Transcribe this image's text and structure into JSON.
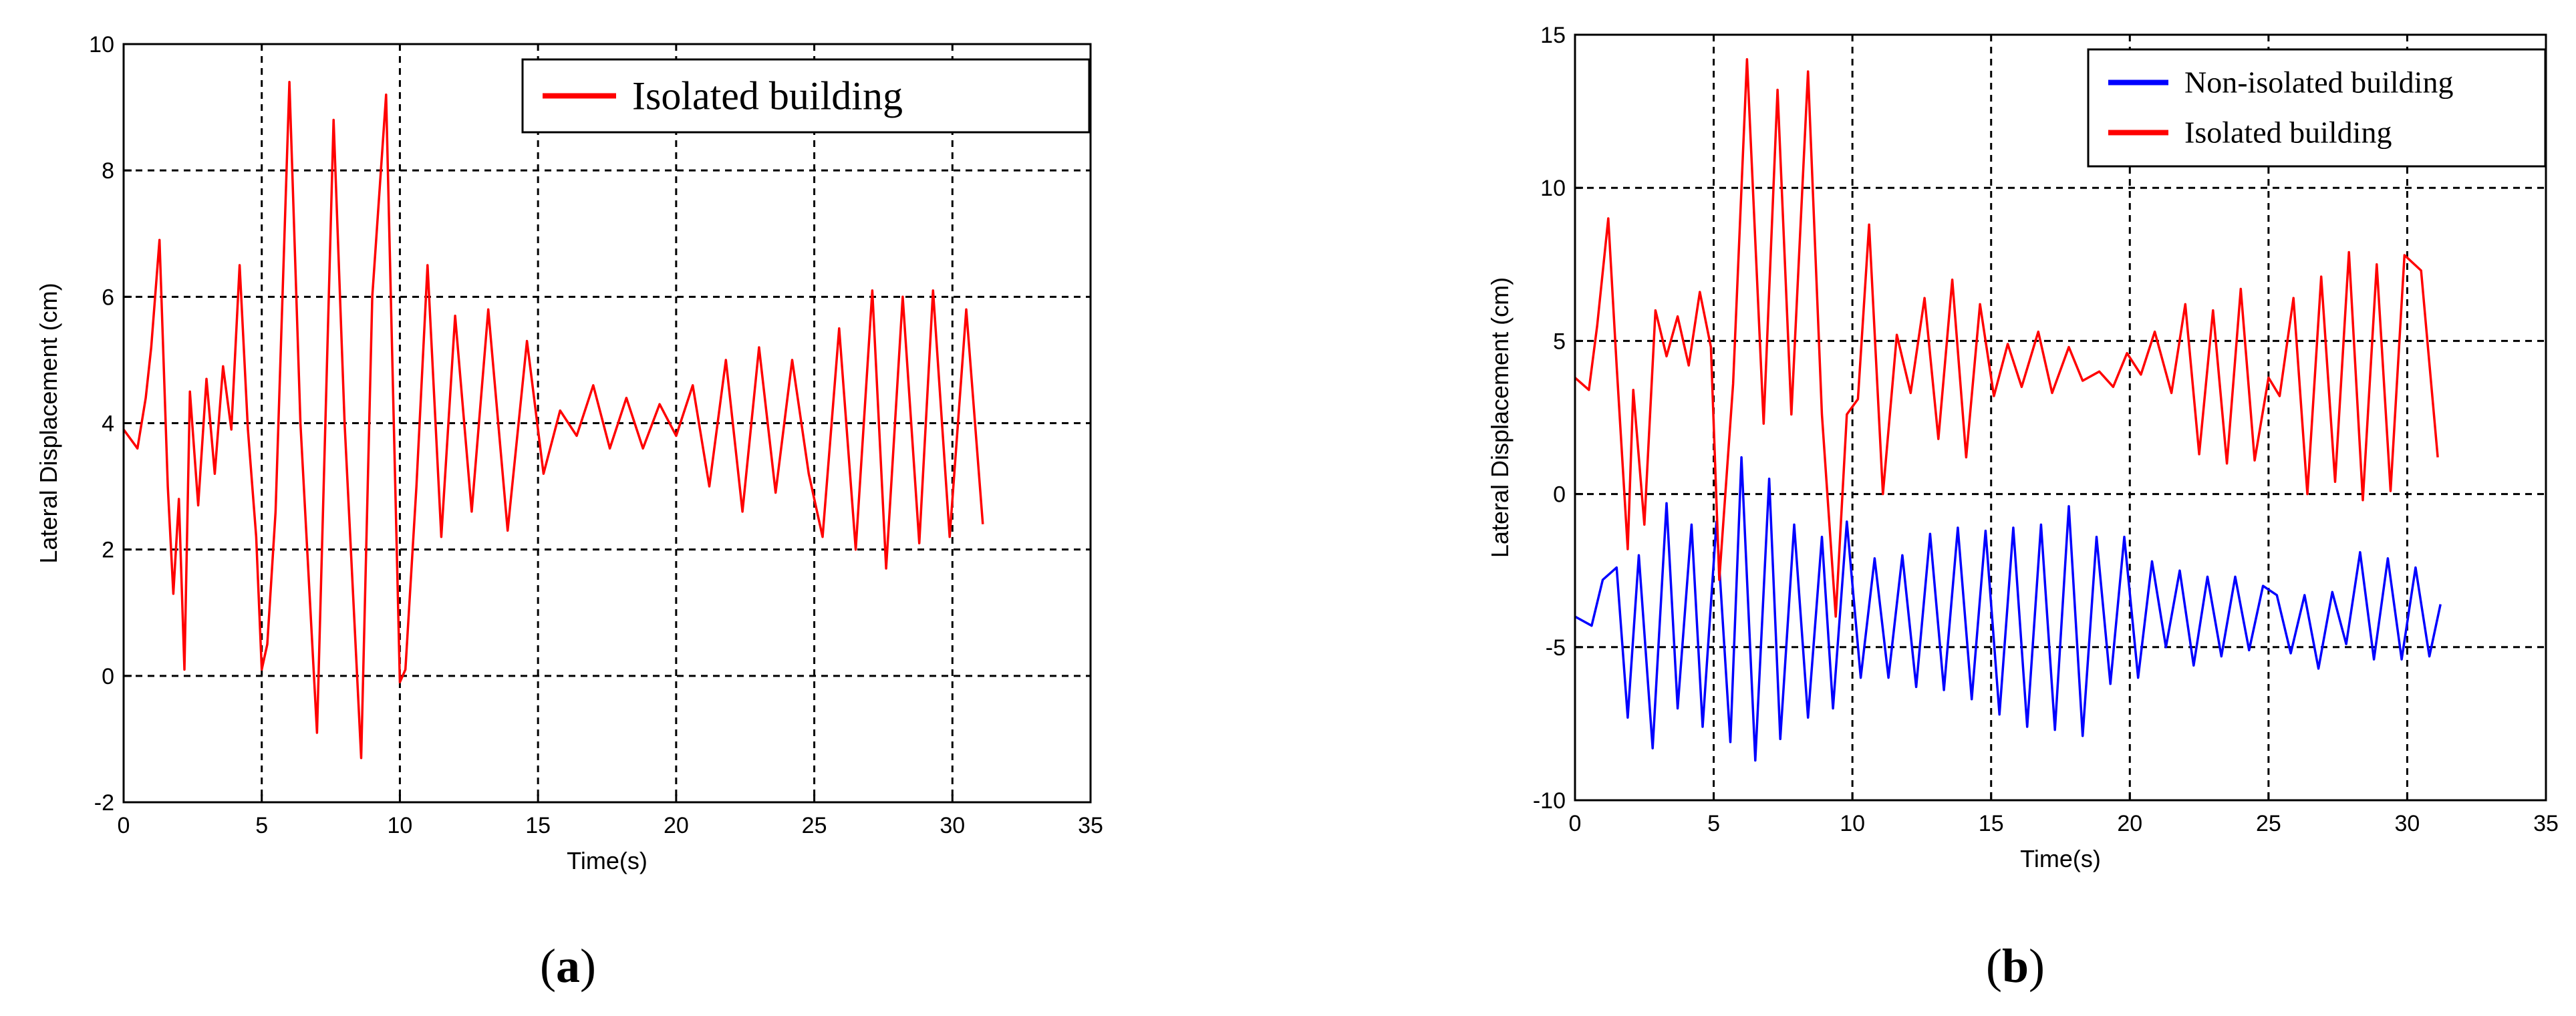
{
  "figure": {
    "panel_a_label_letter": "a",
    "panel_b_label_letter": "b",
    "paren_open": "(",
    "paren_close": ")"
  },
  "chart_data": [
    {
      "type": "line",
      "xlabel": "Time(s)",
      "ylabel": "Lateral Displacement (cm)",
      "xlim": [
        0,
        35
      ],
      "ylim": [
        -2,
        10
      ],
      "xticks": [
        0,
        5,
        10,
        15,
        20,
        25,
        30,
        35
      ],
      "yticks": [
        -2,
        0,
        2,
        4,
        6,
        8,
        10
      ],
      "grid": true,
      "grid_style": "dashed",
      "legend_position": "top-right",
      "series": [
        {
          "name": "Isolated building",
          "color": "#ff0000",
          "x": [
            0,
            0.5,
            0.8,
            1.0,
            1.3,
            1.6,
            1.8,
            2.0,
            2.2,
            2.4,
            2.7,
            3.0,
            3.3,
            3.6,
            3.9,
            4.2,
            4.5,
            4.8,
            5.0,
            5.2,
            5.5,
            6.0,
            6.4,
            7.0,
            7.6,
            8.0,
            8.6,
            9.0,
            9.5,
            10.0,
            10.2,
            10.6,
            11.0,
            11.5,
            12.0,
            12.6,
            13.2,
            13.9,
            14.6,
            15.2,
            15.8,
            16.4,
            17.0,
            17.6,
            18.2,
            18.8,
            19.4,
            20.0,
            20.6,
            21.2,
            21.8,
            22.4,
            23.0,
            23.6,
            24.2,
            24.8,
            25.3,
            25.9,
            26.5,
            27.1,
            27.6,
            28.2,
            28.8,
            29.3,
            29.9,
            30.5,
            31.1
          ],
          "y": [
            3.9,
            3.6,
            4.4,
            5.2,
            6.9,
            3.0,
            1.3,
            2.8,
            0.1,
            4.5,
            2.7,
            4.7,
            3.2,
            4.9,
            3.9,
            6.5,
            3.9,
            2.2,
            0.1,
            0.5,
            2.6,
            9.4,
            4.0,
            -0.9,
            8.8,
            4.0,
            -1.3,
            6.0,
            9.2,
            -0.1,
            0.1,
            3.0,
            6.5,
            2.2,
            5.7,
            2.6,
            5.8,
            2.3,
            5.3,
            3.2,
            4.2,
            3.8,
            4.6,
            3.6,
            4.4,
            3.6,
            4.3,
            3.8,
            4.6,
            3.0,
            5.0,
            2.6,
            5.2,
            2.9,
            5.0,
            3.2,
            2.2,
            5.5,
            2.0,
            6.1,
            1.7,
            6.0,
            2.1,
            6.1,
            2.2,
            5.8,
            2.4
          ]
        }
      ]
    },
    {
      "type": "line",
      "xlabel": "Time(s)",
      "ylabel": "Lateral Displacement (cm)",
      "xlim": [
        0,
        35
      ],
      "ylim": [
        -10,
        15
      ],
      "xticks": [
        0,
        5,
        10,
        15,
        20,
        25,
        30,
        35
      ],
      "yticks": [
        -10,
        -5,
        0,
        5,
        10,
        15
      ],
      "grid": true,
      "grid_style": "dashed",
      "legend_position": "top-right",
      "series": [
        {
          "name": "Non-isolated building",
          "color": "#0000ff",
          "x": [
            0,
            0.6,
            1.0,
            1.5,
            1.9,
            2.3,
            2.8,
            3.3,
            3.7,
            4.2,
            4.6,
            5.1,
            5.6,
            6.0,
            6.5,
            7.0,
            7.4,
            7.9,
            8.4,
            8.9,
            9.3,
            9.8,
            10.3,
            10.8,
            11.3,
            11.8,
            12.3,
            12.8,
            13.3,
            13.8,
            14.3,
            14.8,
            15.3,
            15.8,
            16.3,
            16.8,
            17.3,
            17.8,
            18.3,
            18.8,
            19.3,
            19.8,
            20.3,
            20.8,
            21.3,
            21.8,
            22.3,
            22.8,
            23.3,
            23.8,
            24.3,
            24.8,
            25.3,
            25.8,
            26.3,
            26.8,
            27.3,
            27.8,
            28.3,
            28.8,
            29.3,
            29.8,
            30.3,
            30.8,
            31.2
          ],
          "y": [
            -4.0,
            -4.3,
            -2.8,
            -2.4,
            -7.3,
            -2.0,
            -8.3,
            -0.3,
            -7.0,
            -1.0,
            -7.6,
            -0.9,
            -8.1,
            1.2,
            -8.7,
            0.5,
            -8.0,
            -1.0,
            -7.3,
            -1.4,
            -7.0,
            -0.9,
            -6.0,
            -2.1,
            -6.0,
            -2.0,
            -6.3,
            -1.3,
            -6.4,
            -1.1,
            -6.7,
            -1.2,
            -7.2,
            -1.1,
            -7.6,
            -1.0,
            -7.7,
            -0.4,
            -7.9,
            -1.4,
            -6.2,
            -1.4,
            -6.0,
            -2.2,
            -5.0,
            -2.5,
            -5.6,
            -2.7,
            -5.3,
            -2.7,
            -5.1,
            -3.0,
            -3.3,
            -5.2,
            -3.3,
            -5.7,
            -3.2,
            -4.9,
            -1.9,
            -5.4,
            -2.1,
            -5.4,
            -2.4,
            -5.3,
            -3.6
          ]
        },
        {
          "name": "Isolated building",
          "color": "#ff0000",
          "x": [
            0,
            0.5,
            0.8,
            1.2,
            1.5,
            1.9,
            2.1,
            2.5,
            2.9,
            3.3,
            3.7,
            4.1,
            4.5,
            4.9,
            5.2,
            5.7,
            6.2,
            6.8,
            7.3,
            7.8,
            8.4,
            8.9,
            9.4,
            9.8,
            10.2,
            10.6,
            11.1,
            11.6,
            12.1,
            12.6,
            13.1,
            13.6,
            14.1,
            14.6,
            15.1,
            15.6,
            16.1,
            16.7,
            17.2,
            17.8,
            18.3,
            18.9,
            19.4,
            19.9,
            20.4,
            20.9,
            21.5,
            22.0,
            22.5,
            23.0,
            23.5,
            24.0,
            24.5,
            25.0,
            25.4,
            25.9,
            26.4,
            26.9,
            27.4,
            27.9,
            28.4,
            28.9,
            29.4,
            29.9,
            30.5,
            31.1
          ],
          "y": [
            3.8,
            3.4,
            5.5,
            9.0,
            4.2,
            -1.8,
            3.4,
            -1.0,
            6.0,
            4.5,
            5.8,
            4.2,
            6.6,
            4.8,
            -2.8,
            3.6,
            14.2,
            2.3,
            13.2,
            2.6,
            13.8,
            2.6,
            -4.0,
            2.6,
            3.1,
            8.8,
            0.0,
            5.2,
            3.3,
            6.4,
            1.8,
            7.0,
            1.2,
            6.2,
            3.2,
            4.9,
            3.5,
            5.3,
            3.3,
            4.8,
            3.7,
            4.0,
            3.5,
            4.6,
            3.9,
            5.3,
            3.3,
            6.2,
            1.3,
            6.0,
            1.0,
            6.7,
            1.1,
            3.8,
            3.2,
            6.4,
            0.0,
            7.1,
            0.4,
            7.9,
            -0.2,
            7.5,
            0.1,
            7.8,
            7.3,
            1.2
          ]
        }
      ]
    }
  ]
}
